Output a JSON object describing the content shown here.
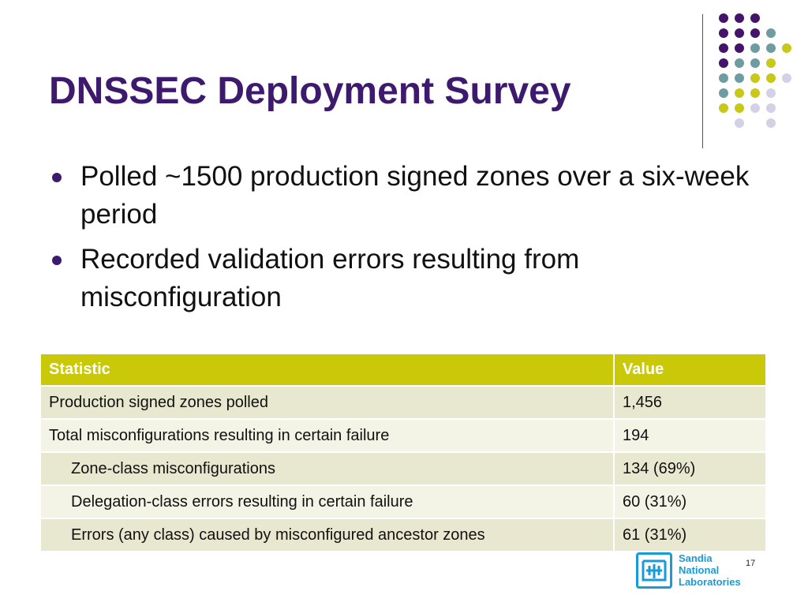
{
  "slide": {
    "title": "DNSSEC Deployment Survey",
    "page_number": "17",
    "accent_colors": {
      "title": "#3d1a6e",
      "table_header": "#c9c90a",
      "dot_purple": "#44146a",
      "dot_teal": "#6e9ca0",
      "dot_olive": "#c8c81a",
      "dot_lavender": "#d4d0e6"
    }
  },
  "bullets": [
    {
      "text": "Polled ~1500 production signed zones over a six-week period"
    },
    {
      "text": "Recorded validation errors resulting from misconfiguration"
    }
  ],
  "table": {
    "headers": [
      "Statistic",
      "Value"
    ],
    "rows": [
      {
        "statistic": "Production signed zones polled",
        "value": "1,456"
      },
      {
        "statistic": "Total misconfigurations resulting in certain failure",
        "value": "194"
      },
      {
        "statistic": "Zone-class misconfigurations",
        "value": "134 (69%)"
      },
      {
        "statistic": "Delegation-class errors resulting in certain failure",
        "value": "60 (31%)"
      },
      {
        "statistic": "Errors (any class) caused by misconfigured ancestor zones",
        "value": "61 (31%)"
      }
    ]
  },
  "logo": {
    "lines": [
      "Sandia",
      "National",
      "Laboratories"
    ]
  }
}
